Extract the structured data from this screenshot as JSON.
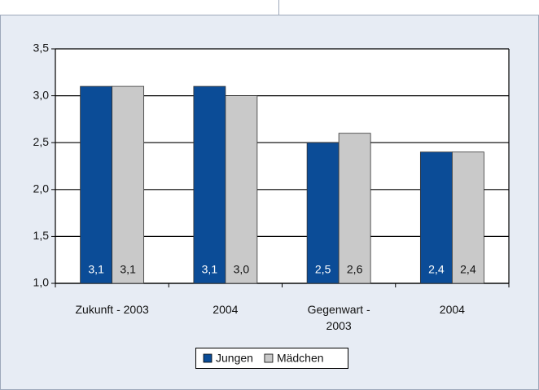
{
  "chart_data": {
    "type": "bar",
    "categories": [
      "Zukunft - 2003",
      "2004",
      "Gegenwart - 2003",
      "2004"
    ],
    "series": [
      {
        "name": "Jungen",
        "color": "#0b4c97",
        "values": [
          3.1,
          3.1,
          2.5,
          2.4
        ],
        "value_labels": [
          "3,1",
          "3,1",
          "2,5",
          "2,4"
        ]
      },
      {
        "name": "Mädchen",
        "color": "#c9c9c9",
        "values": [
          3.1,
          3.0,
          2.6,
          2.4
        ],
        "value_labels": [
          "3,1",
          "3,0",
          "2,6",
          "2,4"
        ]
      }
    ],
    "ylim": [
      1.0,
      3.5
    ],
    "yticks": [
      {
        "value": 1.0,
        "label": "1,0"
      },
      {
        "value": 1.5,
        "label": "1,5"
      },
      {
        "value": 2.0,
        "label": "2,0"
      },
      {
        "value": 2.5,
        "label": "2,5"
      },
      {
        "value": 3.0,
        "label": "3,0"
      },
      {
        "value": 3.5,
        "label": "3,5"
      }
    ],
    "grid": true,
    "legend": "bottom"
  }
}
